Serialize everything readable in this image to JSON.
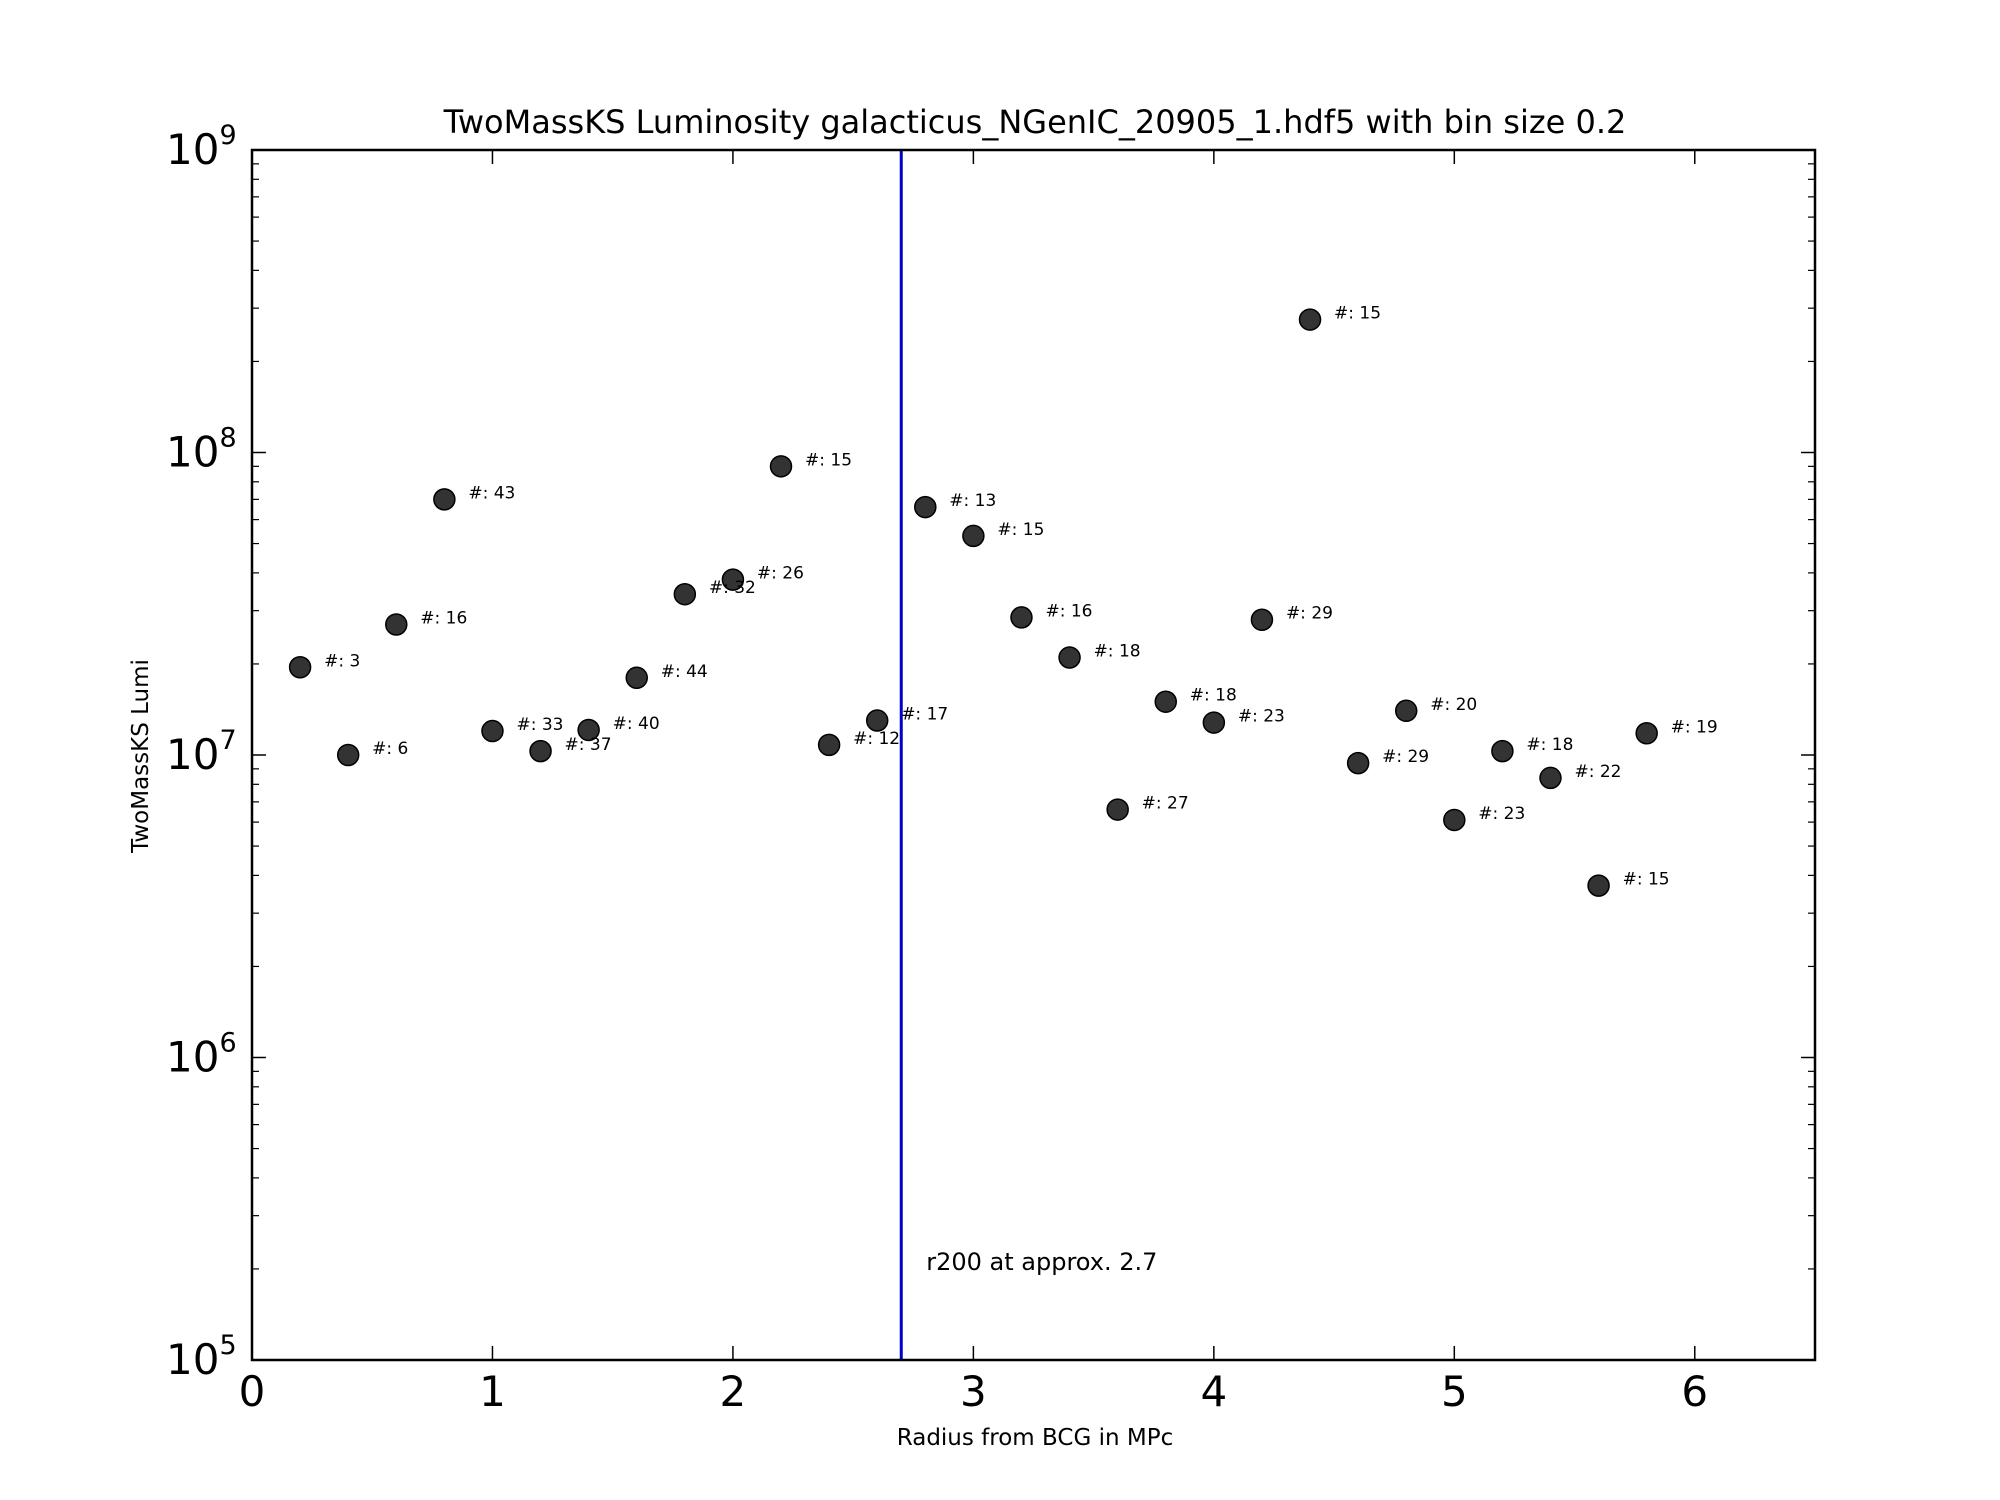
{
  "chart_data": {
    "type": "scatter",
    "title": "TwoMassKS Luminosity galacticus_NGenIC_20905_1.hdf5 with bin size 0.2",
    "xlabel": "Radius from BCG in MPc",
    "ylabel": "TwoMassKS Lumi",
    "xlim": [
      0,
      6.5
    ],
    "ylim": [
      100000,
      1000000000
    ],
    "yscale": "log",
    "grid": false,
    "marker_color": "#333333",
    "x_ticks": [
      0,
      1,
      2,
      3,
      4,
      5,
      6
    ],
    "x_tick_labels": [
      "0",
      "1",
      "2",
      "3",
      "4",
      "5",
      "6"
    ],
    "y_ticks": [
      100000,
      1000000,
      10000000,
      100000000,
      1000000000
    ],
    "y_tick_labels": [
      {
        "base": "10",
        "exp": "5"
      },
      {
        "base": "10",
        "exp": "6"
      },
      {
        "base": "10",
        "exp": "7"
      },
      {
        "base": "10",
        "exp": "8"
      },
      {
        "base": "10",
        "exp": "9"
      }
    ],
    "points": [
      {
        "x": 0.2,
        "y": 19500000,
        "label": "#: 3"
      },
      {
        "x": 0.4,
        "y": 10000000,
        "label": "#: 6"
      },
      {
        "x": 0.6,
        "y": 27000000,
        "label": "#: 16"
      },
      {
        "x": 0.8,
        "y": 70000000,
        "label": "#: 43"
      },
      {
        "x": 1.0,
        "y": 12000000,
        "label": "#: 33"
      },
      {
        "x": 1.2,
        "y": 10300000,
        "label": "#: 37"
      },
      {
        "x": 1.4,
        "y": 12100000,
        "label": "#: 40"
      },
      {
        "x": 1.6,
        "y": 18000000,
        "label": "#: 44"
      },
      {
        "x": 1.8,
        "y": 34000000,
        "label": "#: 32"
      },
      {
        "x": 2.0,
        "y": 38000000,
        "label": "#: 26"
      },
      {
        "x": 2.2,
        "y": 90000000,
        "label": "#: 15"
      },
      {
        "x": 2.4,
        "y": 10800000,
        "label": "#: 12"
      },
      {
        "x": 2.6,
        "y": 13000000,
        "label": "#: 17"
      },
      {
        "x": 2.8,
        "y": 66000000,
        "label": "#: 13"
      },
      {
        "x": 3.0,
        "y": 53000000,
        "label": "#: 15"
      },
      {
        "x": 3.2,
        "y": 28500000,
        "label": "#: 16"
      },
      {
        "x": 3.4,
        "y": 21000000,
        "label": "#: 18"
      },
      {
        "x": 3.6,
        "y": 6600000,
        "label": "#: 27"
      },
      {
        "x": 3.8,
        "y": 15000000,
        "label": "#: 18"
      },
      {
        "x": 4.0,
        "y": 12800000,
        "label": "#: 23"
      },
      {
        "x": 4.2,
        "y": 28000000,
        "label": "#: 29"
      },
      {
        "x": 4.4,
        "y": 275000000,
        "label": "#: 15"
      },
      {
        "x": 4.6,
        "y": 9400000,
        "label": "#: 29"
      },
      {
        "x": 4.8,
        "y": 14000000,
        "label": "#: 20"
      },
      {
        "x": 5.0,
        "y": 6100000,
        "label": "#: 23"
      },
      {
        "x": 5.2,
        "y": 10300000,
        "label": "#: 18"
      },
      {
        "x": 5.4,
        "y": 8400000,
        "label": "#: 22"
      },
      {
        "x": 5.6,
        "y": 3700000,
        "label": "#: 15"
      },
      {
        "x": 5.8,
        "y": 11800000,
        "label": "#: 19"
      }
    ],
    "vline": {
      "x": 2.7,
      "color": "#0000cc",
      "label": "r200 at approx. 2.7"
    }
  }
}
